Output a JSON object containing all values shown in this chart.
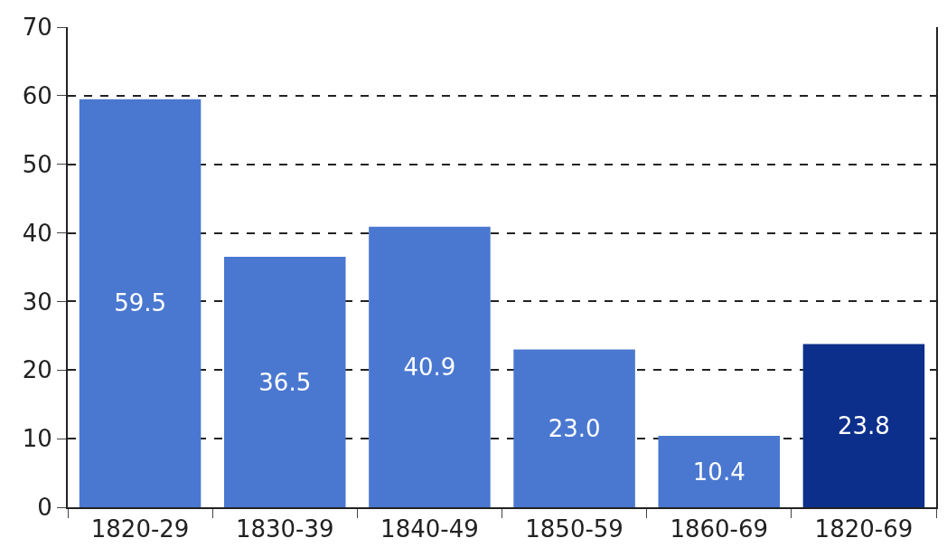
{
  "chart_data": {
    "type": "bar",
    "categories": [
      "1820-29",
      "1830-39",
      "1840-49",
      "1850-59",
      "1860-69",
      "1820-69"
    ],
    "values": [
      59.5,
      36.5,
      40.9,
      23.0,
      10.4,
      23.8
    ],
    "colors": [
      "#4a78d0",
      "#4a78d0",
      "#4a78d0",
      "#4a78d0",
      "#4a78d0",
      "#0d2f8c"
    ],
    "ylim": [
      0,
      70
    ],
    "yticks": [
      0,
      10,
      20,
      30,
      40,
      50,
      60,
      70
    ],
    "value_labels": [
      "59.5",
      "36.5",
      "40.9",
      "23.0",
      "10.4",
      "23.8"
    ],
    "grid": "y"
  }
}
